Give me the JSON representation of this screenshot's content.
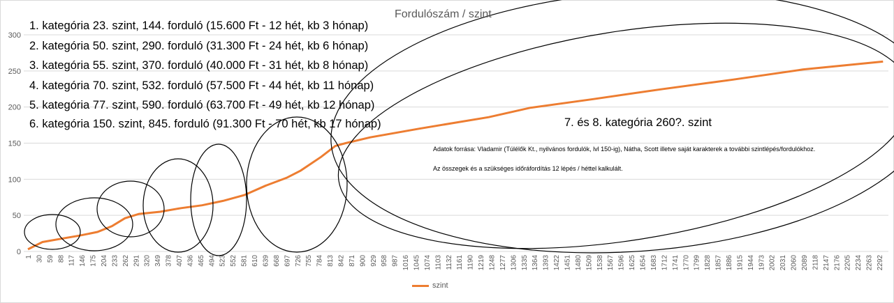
{
  "chart_data": {
    "type": "line",
    "title": "Fordulószám / szint",
    "xlabel": "",
    "ylabel": "",
    "ylim": [
      0,
      300
    ],
    "yticks": [
      0,
      50,
      100,
      150,
      200,
      250,
      300
    ],
    "xticks": [
      1,
      30,
      59,
      88,
      117,
      146,
      175,
      204,
      233,
      262,
      291,
      320,
      349,
      378,
      407,
      436,
      465,
      494,
      523,
      552,
      581,
      610,
      639,
      668,
      697,
      726,
      755,
      784,
      813,
      842,
      871,
      900,
      929,
      958,
      987,
      1016,
      1045,
      1074,
      1103,
      1132,
      1161,
      1190,
      1219,
      1248,
      1277,
      1306,
      1335,
      1364,
      1393,
      1422,
      1451,
      1480,
      1509,
      1538,
      1567,
      1596,
      1625,
      1654,
      1683,
      1712,
      1741,
      1770,
      1799,
      1828,
      1857,
      1886,
      1915,
      1944,
      1973,
      2002,
      2031,
      2060,
      2089,
      2118,
      2147,
      2176,
      2205,
      2234,
      2263,
      2292
    ],
    "grid": true,
    "legend_position": "bottom",
    "series": [
      {
        "name": "szint",
        "color": "#ed7d31",
        "x": [
          1,
          40,
          95,
          140,
          188,
          227,
          262,
          300,
          357,
          413,
          470,
          526,
          583,
          640,
          697,
          735,
          790,
          828,
          856,
          922,
          1053,
          1241,
          1353,
          1522,
          1710,
          1898,
          2086,
          2302
        ],
        "y": [
          3,
          13,
          18,
          22,
          27,
          35,
          46,
          52,
          55,
          60,
          64,
          70,
          78,
          91,
          102,
          112,
          131,
          146,
          150,
          158,
          170,
          186,
          199,
          211,
          225,
          238,
          252,
          263
        ]
      }
    ],
    "annotations": {
      "categories": [
        "1. kategória 23. szint, 144. forduló (15.600 Ft - 12 hét, kb 3 hónap)",
        "2. kategória 50. szint, 290. forduló  (31.300 Ft - 24 hét, kb 6 hónap)",
        "3. kategória 55. szint, 370. forduló (40.000 Ft - 31 hét, kb 8 hónap)",
        "4. kategória 70. szint, 532. forduló (57.500 Ft - 44 hét, kb 11 hónap)",
        "5. kategória 77. szint, 590. forduló  (63.700 Ft - 49 hét, kb 12 hónap)",
        "6. kategória 150. szint, 845. forduló  (91.300 Ft - 70 hét, kb 17 hónap)"
      ],
      "future": "7. és 8. kategória 260?. szint",
      "notes": [
        "Adatok forrása: Vladamir (Túlélők Kt., nyilvános fordulók, lvl 150-ig), Nátha, Scott illetve saját karakterek a további szintlépés/fordulókhoz.",
        "Az összegek és a szükséges időráfordítás 12 lépés / héttel kalkulált."
      ]
    }
  }
}
